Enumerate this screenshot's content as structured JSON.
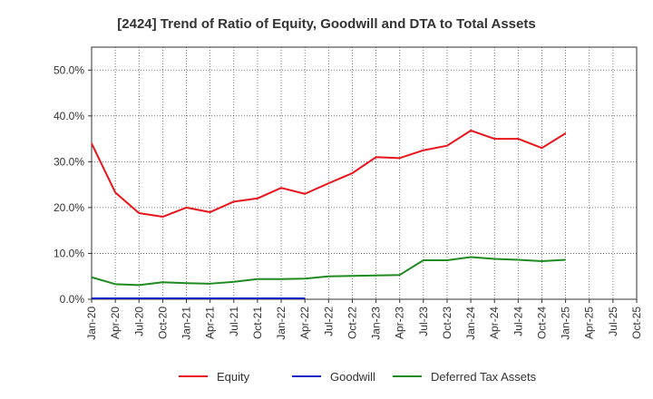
{
  "chart_data": {
    "type": "line",
    "title": "[2424]  Trend of Ratio of Equity, Goodwill and DTA to Total Assets",
    "xlabel": "",
    "ylabel": "",
    "ylim": [
      0,
      55
    ],
    "y_ticks": [
      0,
      10,
      20,
      30,
      40,
      50
    ],
    "y_tick_labels": [
      "0.0%",
      "10.0%",
      "20.0%",
      "30.0%",
      "40.0%",
      "50.0%"
    ],
    "categories": [
      "Jan-20",
      "Apr-20",
      "Jul-20",
      "Oct-20",
      "Jan-21",
      "Apr-21",
      "Jul-21",
      "Oct-21",
      "Jan-22",
      "Apr-22",
      "Jul-22",
      "Oct-22",
      "Jan-23",
      "Apr-23",
      "Jul-23",
      "Oct-23",
      "Jan-24",
      "Apr-24",
      "Jul-24",
      "Oct-24",
      "Jan-25",
      "Apr-25",
      "Jul-25",
      "Oct-25"
    ],
    "x_tick_labels": [
      "Jan-20",
      "Apr-20",
      "Jul-20",
      "Oct-20",
      "Jan-21",
      "Apr-21",
      "Jul-21",
      "Oct-21",
      "Jan-22",
      "Apr-22",
      "Jul-22",
      "Oct-22",
      "Jan-23",
      "Apr-23",
      "Jul-23",
      "Oct-23",
      "Jan-24",
      "Apr-24",
      "Jul-24",
      "Oct-24",
      "Jan-25",
      "Apr-25",
      "Jul-25",
      "Oct-25"
    ],
    "grid": true,
    "legend_position": "bottom",
    "series": [
      {
        "name": "Equity",
        "color": "#e8141b",
        "values": [
          34.0,
          23.3,
          18.8,
          18.0,
          20.0,
          19.0,
          21.3,
          22.0,
          24.3,
          23.0,
          25.3,
          27.5,
          31.0,
          30.8,
          32.5,
          33.5,
          36.8,
          35.0,
          35.0,
          33.0,
          36.2,
          null,
          null,
          null
        ]
      },
      {
        "name": "Goodwill",
        "color": "#1426c8",
        "values": [
          0.2,
          0.2,
          0.2,
          0.2,
          0.2,
          0.2,
          0.2,
          0.2,
          0.2,
          0.2,
          null,
          null,
          null,
          null,
          null,
          null,
          null,
          null,
          null,
          null,
          null,
          null,
          null,
          null
        ]
      },
      {
        "name": "Deferred Tax Assets",
        "color": "#1f8a1f",
        "values": [
          4.8,
          3.3,
          3.1,
          3.7,
          3.5,
          3.4,
          3.8,
          4.4,
          4.4,
          4.5,
          5.0,
          5.1,
          5.2,
          5.3,
          8.5,
          8.5,
          9.2,
          8.8,
          8.6,
          8.3,
          8.6,
          null,
          null,
          null
        ]
      }
    ]
  }
}
